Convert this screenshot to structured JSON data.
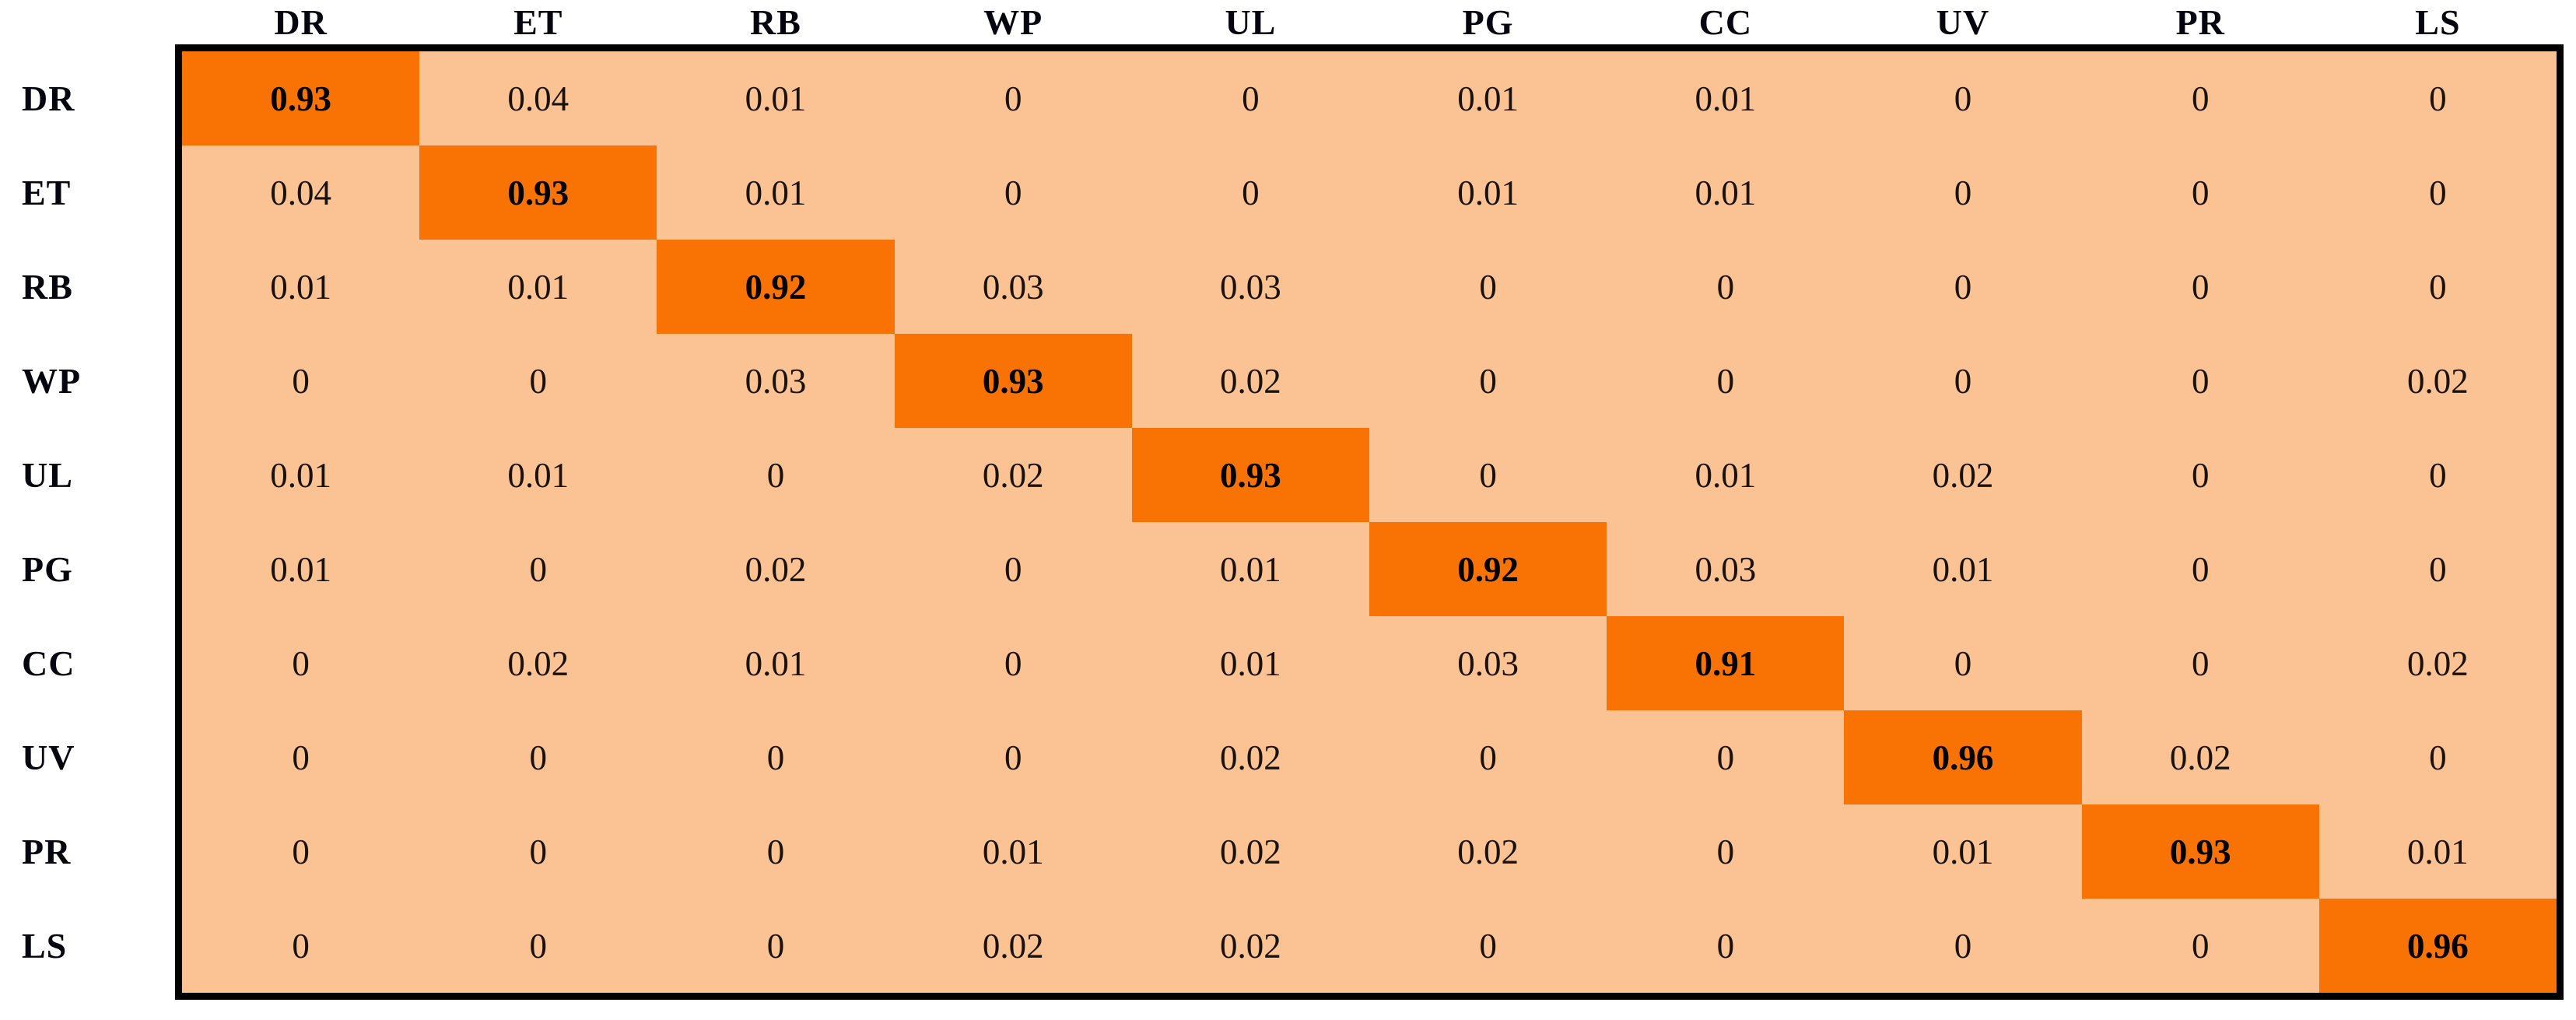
{
  "chart_data": {
    "type": "heatmap",
    "title": "",
    "subtitle": "",
    "description": "confusion-matrix",
    "row_labels": [
      "DR",
      "ET",
      "RB",
      "WP",
      "UL",
      "PG",
      "CC",
      "UV",
      "PR",
      "LS"
    ],
    "col_labels": [
      "DR",
      "ET",
      "RB",
      "WP",
      "UL",
      "PG",
      "CC",
      "UV",
      "PR",
      "LS"
    ],
    "matrix": [
      [
        0.93,
        0.04,
        0.01,
        0,
        0,
        0.01,
        0.01,
        0,
        0,
        0
      ],
      [
        0.04,
        0.93,
        0.01,
        0,
        0,
        0.01,
        0.01,
        0,
        0,
        0
      ],
      [
        0.01,
        0.01,
        0.92,
        0.03,
        0.03,
        0,
        0,
        0,
        0,
        0
      ],
      [
        0,
        0,
        0.03,
        0.93,
        0.02,
        0,
        0,
        0,
        0,
        0.02
      ],
      [
        0.01,
        0.01,
        0,
        0.02,
        0.93,
        0,
        0.01,
        0.02,
        0,
        0
      ],
      [
        0.01,
        0,
        0.02,
        0,
        0.01,
        0.92,
        0.03,
        0.01,
        0,
        0
      ],
      [
        0,
        0.02,
        0.01,
        0,
        0.01,
        0.03,
        0.91,
        0,
        0,
        0.02
      ],
      [
        0,
        0,
        0,
        0,
        0.02,
        0,
        0,
        0.96,
        0.02,
        0
      ],
      [
        0,
        0,
        0,
        0.01,
        0.02,
        0.02,
        0,
        0.01,
        0.93,
        0.01
      ],
      [
        0,
        0,
        0,
        0.02,
        0.02,
        0,
        0,
        0,
        0,
        0.96
      ]
    ],
    "diagonal_values": [
      0.93,
      0.93,
      0.92,
      0.93,
      0.93,
      0.92,
      0.91,
      0.96,
      0.93,
      0.96
    ],
    "zero_display": "0",
    "legend": "none",
    "grid": false,
    "colors": {
      "diagonal_fill": "#f87303",
      "offdiagonal_fill": "#fbc394",
      "border": "#000000",
      "label_text": "#050510",
      "value_text": "#1a1208"
    }
  }
}
